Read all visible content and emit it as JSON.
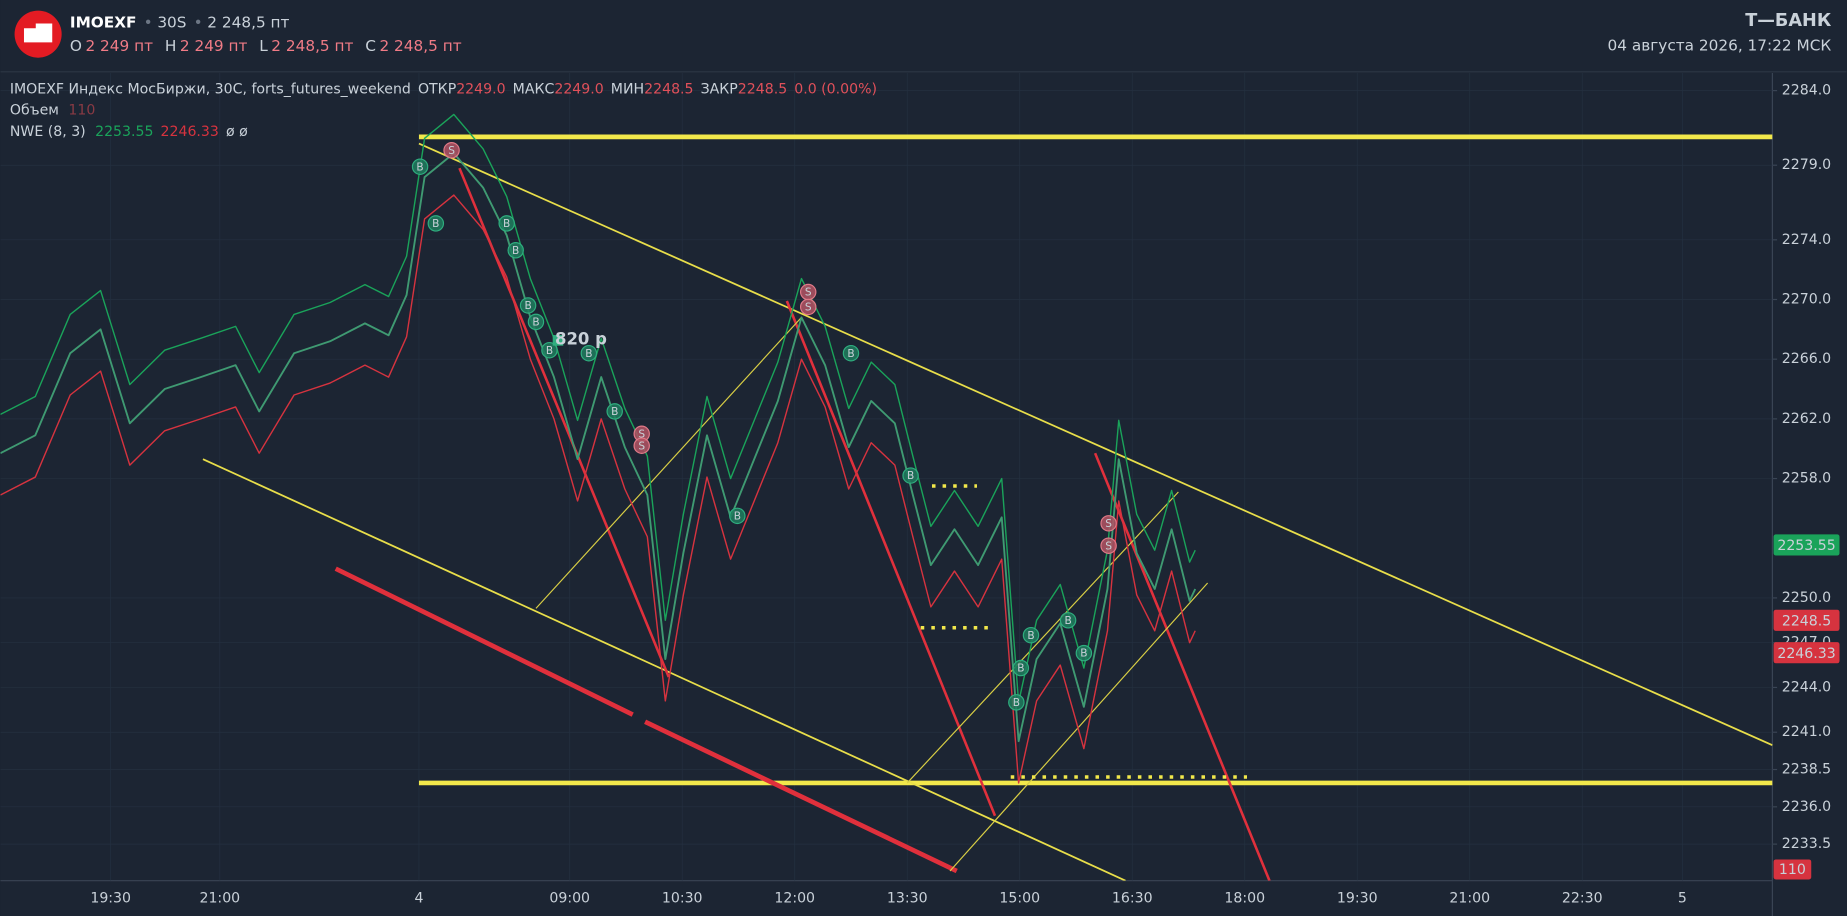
{
  "header": {
    "ticker": "IMOEXF",
    "interval": "30S",
    "price": "2 248,5 пт",
    "ohlc": [
      {
        "key": "O",
        "text": "2 249 пт"
      },
      {
        "key": "H",
        "text": "2 249 пт"
      },
      {
        "key": "L",
        "text": "2 248,5 пт"
      },
      {
        "key": "C",
        "text": "2 248,5 пт"
      }
    ],
    "brand": "Т—БАНК",
    "datetime": "04 августа 2026, 17:22 МСК"
  },
  "chart_data": {
    "type": "line",
    "legend": {
      "title": "IMOEXF Индекс МосБиржи, 30С, forts_futures_weekend",
      "open_key": "ОТКР",
      "open": {
        "value": 2249,
        "label": "2249.0"
      },
      "high_key": "МАКС",
      "high": {
        "value": 2249,
        "label": "2249.0"
      },
      "low_key": "МИН",
      "close_key": "ЗАКР",
      "change": "0.0 (0.00%)",
      "nwe_extra": "ø ø"
    },
    "volume": {
      "name": "Объем",
      "value": 110,
      "color": "#d6333f"
    },
    "xlim": [
      -0.98,
      14.77
    ],
    "xticks": [
      {
        "value": 0,
        "label": "19:30"
      },
      {
        "value": 0.97,
        "label": "21:00"
      },
      {
        "value": 2.74,
        "label": "4"
      },
      {
        "value": 4.08,
        "label": "09:00"
      },
      {
        "value": 5.08,
        "label": "10:30"
      },
      {
        "value": 6.08,
        "label": "12:00"
      },
      {
        "value": 7.08,
        "label": "13:30"
      },
      {
        "value": 8.08,
        "label": "15:00"
      },
      {
        "value": 9.08,
        "label": "16:30"
      },
      {
        "value": 10.08,
        "label": "18:00"
      },
      {
        "value": 11.08,
        "label": "19:30"
      },
      {
        "value": 12.08,
        "label": "21:00"
      },
      {
        "value": 13.08,
        "label": "22:30"
      },
      {
        "value": 13.97,
        "label": "5"
      }
    ],
    "ylim": [
      2231.05,
      2285.18
    ],
    "yticks": [
      {
        "value": 2284,
        "label": "2284.0"
      },
      {
        "value": 2279,
        "label": "2279.0"
      },
      {
        "value": 2274,
        "label": "2274.0"
      },
      {
        "value": 2270,
        "label": "2270.0"
      },
      {
        "value": 2266,
        "label": "2266.0"
      },
      {
        "value": 2262,
        "label": "2262.0"
      },
      {
        "value": 2258,
        "label": "2258.0"
      },
      {
        "value": 2250,
        "label": "2250.0"
      },
      {
        "value": 2247,
        "label": "2247.0"
      },
      {
        "value": 2244,
        "label": "2244.0"
      },
      {
        "value": 2241,
        "label": "2241.0"
      },
      2238.5,
      {
        "value": 2236,
        "label": "2236.0"
      },
      2233.5
    ],
    "grid": true,
    "x": [
      -0.98,
      -0.67,
      -0.36,
      -0.09,
      0.17,
      0.48,
      0.8,
      1.11,
      1.32,
      1.63,
      1.95,
      2.26,
      2.47,
      2.63,
      2.79,
      3.05,
      3.31,
      3.52,
      3.73,
      3.94,
      4.15,
      4.36,
      4.57,
      4.77,
      4.93,
      5.09,
      5.3,
      5.51,
      5.72,
      5.93,
      6.14,
      6.35,
      6.56,
      6.76,
      6.97,
      7.13,
      7.29,
      7.5,
      7.71,
      7.92,
      8.07,
      8.23,
      8.44,
      8.65,
      8.86,
      8.96,
      9.12,
      9.28,
      9.43,
      9.59,
      9.64
    ],
    "series": [
      {
        "name": "IMOEXF",
        "color": "#3f9a72",
        "values": [
          2259.7,
          2260.9,
          2266.4,
          2268.0,
          2261.7,
          2264.0,
          2264.8,
          2265.6,
          2262.5,
          2266.4,
          2267.2,
          2268.4,
          2267.6,
          2270.3,
          2278.2,
          2279.8,
          2277.5,
          2274.3,
          2268.8,
          2264.8,
          2259.3,
          2264.8,
          2260.1,
          2256.9,
          2245.9,
          2253.0,
          2260.9,
          2255.4,
          2259.3,
          2263.2,
          2268.8,
          2265.6,
          2260.1,
          2263.2,
          2261.7,
          2256.9,
          2252.2,
          2254.6,
          2252.2,
          2255.4,
          2240.4,
          2245.9,
          2248.3,
          2242.7,
          2250.6,
          2259.3,
          2253.0,
          2250.6,
          2254.6,
          2249.8,
          2250.6
        ]
      },
      {
        "name": "NWE (8, 3)",
        "color": "#1aa35a",
        "lower_color": "#d6333f",
        "values": [
          2262.3,
          2263.5,
          2269.0,
          2270.6,
          2264.3,
          2266.6,
          2267.4,
          2268.2,
          2265.1,
          2269.0,
          2269.8,
          2271.0,
          2270.2,
          2272.9,
          2280.8,
          2282.4,
          2280.1,
          2276.9,
          2271.4,
          2267.4,
          2261.9,
          2267.4,
          2262.7,
          2259.5,
          2248.5,
          2255.6,
          2263.5,
          2258.0,
          2261.9,
          2265.8,
          2271.4,
          2268.2,
          2262.7,
          2265.8,
          2264.3,
          2259.5,
          2254.8,
          2257.2,
          2254.8,
          2258.0,
          2243.0,
          2248.5,
          2250.9,
          2245.3,
          2253.2,
          2261.9,
          2255.6,
          2253.2,
          2257.2,
          2252.4,
          2253.2
        ],
        "lower": [
          2256.9,
          2258.1,
          2263.6,
          2265.2,
          2258.9,
          2261.2,
          2262.0,
          2262.8,
          2259.7,
          2263.6,
          2264.4,
          2265.6,
          2264.8,
          2267.5,
          2275.4,
          2277.0,
          2274.7,
          2271.5,
          2266.0,
          2262.0,
          2256.5,
          2262.0,
          2257.3,
          2254.1,
          2243.1,
          2250.2,
          2258.1,
          2252.6,
          2256.5,
          2260.4,
          2266.0,
          2262.8,
          2257.3,
          2260.4,
          2258.9,
          2254.1,
          2249.4,
          2251.8,
          2249.4,
          2252.6,
          2237.6,
          2243.1,
          2245.5,
          2239.9,
          2247.8,
          2256.5,
          2250.2,
          2247.8,
          2251.8,
          2247.0,
          2247.8
        ]
      }
    ],
    "price_labels": [
      {
        "value": 2253.55,
        "color": "#1aa35a"
      },
      {
        "value": 2248.5,
        "color": "#d6333f"
      },
      {
        "value": 2246.33,
        "color": "#d6333f"
      }
    ],
    "lines": [
      {
        "x": [
          2.74,
          14.77
        ],
        "y": [
          2280.9,
          2280.9
        ],
        "color": "#f2e84b",
        "weight": "bold"
      },
      {
        "x": [
          2.74,
          14.77
        ],
        "y": [
          2237.6,
          2237.6
        ],
        "color": "#f2e84b",
        "weight": "bold"
      },
      {
        "x": [
          2.74,
          14.77
        ],
        "y": [
          2280.45,
          2240.13
        ],
        "color": "#e8de4a",
        "weight": "normal"
      },
      {
        "x": [
          0.82,
          9.02
        ],
        "y": [
          2259.3,
          2231.05
        ],
        "color": "#e8de4a",
        "weight": "normal"
      },
      {
        "x": [
          2.0,
          4.64
        ],
        "y": [
          2251.96,
          2242.18
        ],
        "color": "#e0303c",
        "weight": "bold"
      },
      {
        "x": [
          4.75,
          7.52
        ],
        "y": [
          2241.7,
          2231.7
        ],
        "color": "#e0303c",
        "weight": "bold"
      },
      {
        "x": [
          3.1,
          4.96
        ],
        "y": [
          2278.8,
          2244.7
        ],
        "color": "#e0303c",
        "weight": "medium"
      },
      {
        "x": [
          6.01,
          7.86
        ],
        "y": [
          2269.9,
          2235.4
        ],
        "color": "#e0303c",
        "weight": "medium"
      },
      {
        "x": [
          8.75,
          10.3
        ],
        "y": [
          2259.7,
          2231.05
        ],
        "color": "#e0303c",
        "weight": "medium"
      },
      {
        "x": [
          3.78,
          6.14
        ],
        "y": [
          2249.3,
          2268.8
        ],
        "color": "#d9cf45",
        "weight": "thin"
      },
      {
        "x": [
          7.08,
          9.49
        ],
        "y": [
          2237.6,
          2257.1
        ],
        "color": "#d9cf45",
        "weight": "thin"
      },
      {
        "x": [
          7.46,
          9.75
        ],
        "y": [
          2231.7,
          2251.0
        ],
        "color": "#d9cf45",
        "weight": "thin"
      },
      {
        "x": [
          7.3,
          7.7
        ],
        "y": [
          2257.5,
          2257.5
        ],
        "color": "#f2e84b",
        "weight": "dotted"
      },
      {
        "x": [
          7.2,
          7.8
        ],
        "y": [
          2248.0,
          2248.0
        ],
        "color": "#f2e84b",
        "weight": "dotted"
      },
      {
        "x": [
          8.0,
          10.1
        ],
        "y": [
          2238.0,
          2238.0
        ],
        "color": "#f2e84b",
        "weight": "dotted"
      }
    ],
    "signals": [
      {
        "x": 2.75,
        "y": 2278.9,
        "label": "B"
      },
      {
        "x": 2.89,
        "y": 2275.1,
        "label": "B"
      },
      {
        "x": 3.03,
        "y": 2280.0,
        "label": "S"
      },
      {
        "x": 3.52,
        "y": 2275.1,
        "label": "B"
      },
      {
        "x": 3.6,
        "y": 2273.3,
        "label": "B"
      },
      {
        "x": 3.71,
        "y": 2269.6,
        "label": "B"
      },
      {
        "x": 3.78,
        "y": 2268.5,
        "label": "B"
      },
      {
        "x": 3.9,
        "y": 2266.6,
        "label": "B"
      },
      {
        "x": 4.25,
        "y": 2266.4,
        "label": "B"
      },
      {
        "x": 4.48,
        "y": 2262.5,
        "label": "B"
      },
      {
        "x": 4.72,
        "y": 2261.0,
        "label": "S"
      },
      {
        "x": 4.72,
        "y": 2260.2,
        "label": "S"
      },
      {
        "x": 5.57,
        "y": 2255.5,
        "label": "B"
      },
      {
        "x": 6.2,
        "y": 2270.5,
        "label": "S"
      },
      {
        "x": 6.2,
        "y": 2269.5,
        "label": "S"
      },
      {
        "x": 6.58,
        "y": 2266.4,
        "label": "B"
      },
      {
        "x": 7.11,
        "y": 2258.2,
        "label": "B"
      },
      {
        "x": 8.05,
        "y": 2243.0,
        "label": "B"
      },
      {
        "x": 8.09,
        "y": 2245.3,
        "label": "B"
      },
      {
        "x": 8.18,
        "y": 2247.5,
        "label": "B"
      },
      {
        "x": 8.51,
        "y": 2248.5,
        "label": "B"
      },
      {
        "x": 8.65,
        "y": 2246.3,
        "label": "B"
      },
      {
        "x": 8.87,
        "y": 2255.0,
        "label": "S"
      },
      {
        "x": 8.87,
        "y": 2253.5,
        "label": "S"
      }
    ],
    "annotations": [
      {
        "x": 4.18,
        "y": 2267.3,
        "text": "820 р"
      }
    ]
  }
}
